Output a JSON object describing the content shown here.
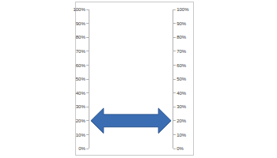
{
  "chart_data": {
    "type": "arrow",
    "values": [
      20
    ],
    "color": "#3b6db3",
    "ylim": [
      0,
      100
    ],
    "yticks": [
      {
        "value": 0,
        "label": "0%"
      },
      {
        "value": 10,
        "label": "10%"
      },
      {
        "value": 20,
        "label": "20%"
      },
      {
        "value": 30,
        "label": "30%"
      },
      {
        "value": 40,
        "label": "40%"
      },
      {
        "value": 50,
        "label": "50%"
      },
      {
        "value": 60,
        "label": "60%"
      },
      {
        "value": 70,
        "label": "70%"
      },
      {
        "value": 80,
        "label": "80%"
      },
      {
        "value": 90,
        "label": "90%"
      },
      {
        "value": 100,
        "label": "100%"
      }
    ],
    "y2lim": [
      0,
      100
    ],
    "y2ticks": [
      {
        "value": 0,
        "label": "0%"
      },
      {
        "value": 10,
        "label": "10%"
      },
      {
        "value": 20,
        "label": "20%"
      },
      {
        "value": 30,
        "label": "30%"
      },
      {
        "value": 40,
        "label": "40%"
      },
      {
        "value": 50,
        "label": "50%"
      },
      {
        "value": 60,
        "label": "60%"
      },
      {
        "value": 70,
        "label": "70%"
      },
      {
        "value": 80,
        "label": "80%"
      },
      {
        "value": 90,
        "label": "90%"
      },
      {
        "value": 100,
        "label": "100%"
      }
    ],
    "grid": false
  }
}
